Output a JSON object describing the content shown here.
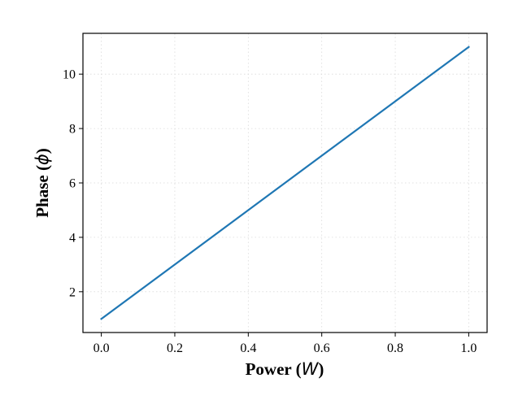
{
  "chart_data": {
    "type": "line",
    "xlabel_prefix": "Power (",
    "xlabel_symbol": "W",
    "xlabel_suffix": ")",
    "ylabel_prefix": "Phase (",
    "ylabel_symbol": "ϕ",
    "ylabel_suffix": ")",
    "xlim": [
      -0.05,
      1.05
    ],
    "ylim": [
      0.5,
      11.5
    ],
    "xticks": [
      0.0,
      0.2,
      0.4,
      0.6,
      0.8,
      1.0
    ],
    "xtick_labels": [
      "0.0",
      "0.2",
      "0.4",
      "0.6",
      "0.8",
      "1.0"
    ],
    "yticks": [
      2,
      4,
      6,
      8,
      10
    ],
    "ytick_labels": [
      "2",
      "4",
      "6",
      "8",
      "10"
    ],
    "grid": true,
    "series": [
      {
        "x": [
          0.0,
          1.0
        ],
        "y": [
          1,
          11
        ],
        "color": "#1f77b4"
      }
    ]
  }
}
